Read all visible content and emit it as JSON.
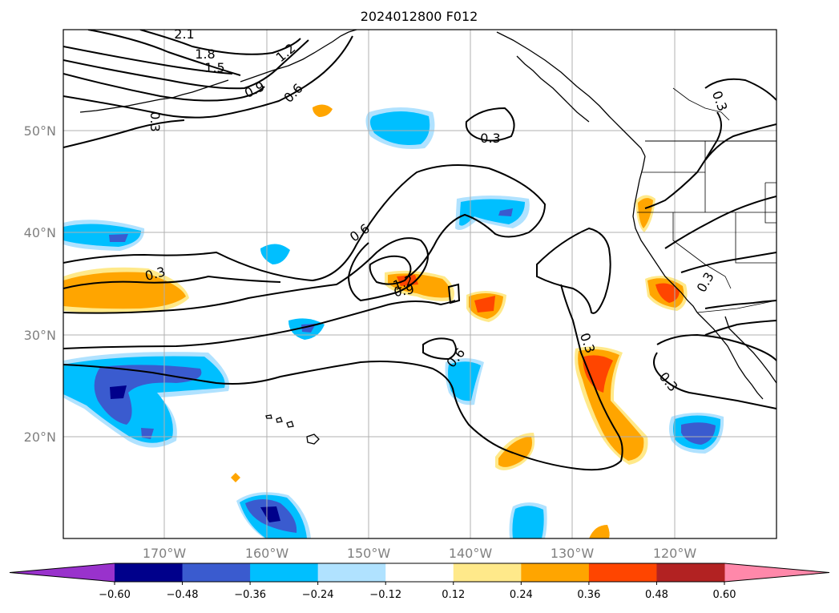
{
  "title": "2024012800 F012",
  "longitude_labels": [
    "170°W",
    "160°W",
    "150°W",
    "140°W",
    "130°W",
    "120°W"
  ],
  "latitude_labels": [
    "50°N",
    "40°N",
    "30°N",
    "20°N"
  ],
  "colorbar": {
    "ticks": [
      "−0.60",
      "−0.48",
      "−0.36",
      "−0.24",
      "−0.12",
      "0.12",
      "0.24",
      "0.36",
      "0.48",
      "0.60"
    ],
    "colors": [
      "#9932cc",
      "#00008b",
      "#3a5bcf",
      "#00bfff",
      "#b0e2ff",
      "#ffffff",
      "#ffe98a",
      "#ffa500",
      "#ff4500",
      "#b22222",
      "#ff88aa"
    ]
  },
  "contour_labels": [
    "2.1",
    "1.8",
    "1.5",
    "1.2",
    "0.9",
    "0.6",
    "0.3",
    "0.3",
    "0.3",
    "0.6",
    "0.3",
    "1.2",
    "0.9",
    "0.6",
    "0.3",
    "0.3",
    "0.3"
  ],
  "colors": {
    "negative_light": "#b0e2ff",
    "negative_mid": "#00bfff",
    "negative_strong": "#3a5bcf",
    "negative_max": "#00008b",
    "positive_light": "#ffe98a",
    "positive_mid": "#ffa500",
    "positive_strong": "#ff4500",
    "positive_max": "#b22222"
  }
}
